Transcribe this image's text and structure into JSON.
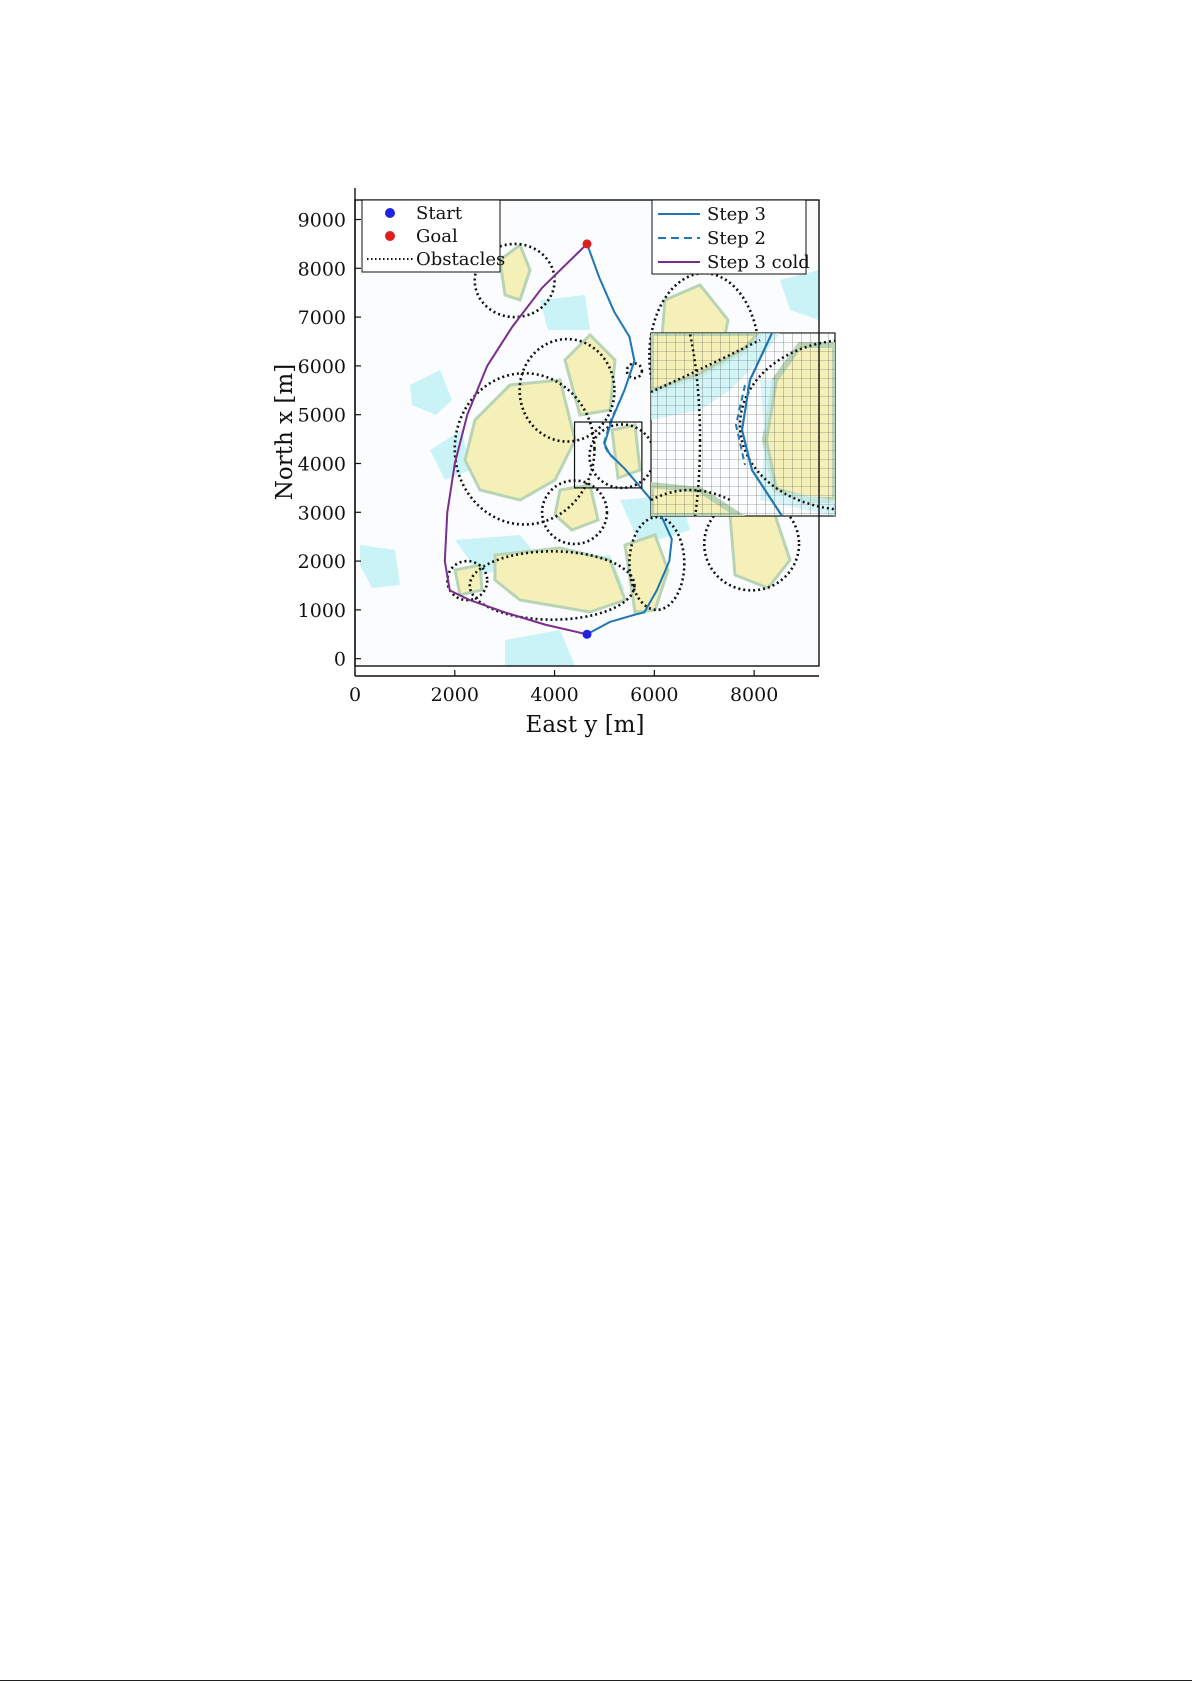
{
  "chart_data": {
    "type": "line",
    "xlabel": "East y [m]",
    "ylabel": "North x [m]",
    "xlim": [
      0,
      9300
    ],
    "ylim": [
      -150,
      9400
    ],
    "x_ticks": [
      0,
      2000,
      4000,
      6000,
      8000
    ],
    "y_ticks": [
      0,
      1000,
      2000,
      3000,
      4000,
      5000,
      6000,
      7000,
      8000,
      9000
    ],
    "grid": false,
    "legend_left": [
      "Start",
      "Goal",
      "Obstacles"
    ],
    "legend_right": [
      "Step 3",
      "Step 2",
      "Step 3 cold"
    ],
    "points": {
      "start": {
        "name": "Start",
        "y": 4650,
        "x": 500,
        "color": "#1f22e0"
      },
      "goal": {
        "name": "Goal",
        "y": 4650,
        "x": 8500,
        "color": "#e01e1e"
      }
    },
    "series": [
      {
        "name": "Step 3",
        "color": "#1f77b4",
        "style": "solid",
        "y": [
          4650,
          5100,
          5600,
          5800,
          6050,
          6300,
          6350,
          6150,
          5900,
          5650,
          5400,
          5100,
          5000,
          5150,
          5400,
          5600,
          5500,
          5200,
          4900,
          4650
        ],
        "x": [
          500,
          750,
          900,
          950,
          1400,
          2000,
          2450,
          2900,
          3300,
          3600,
          3900,
          4200,
          4400,
          4900,
          5500,
          6100,
          6600,
          7100,
          7800,
          8500
        ]
      },
      {
        "name": "Step 2",
        "color": "#1f77b4",
        "style": "dashed",
        "y": [
          4650,
          5100,
          5600,
          5800,
          6050,
          6300,
          6350,
          6150,
          5900,
          5650,
          5400,
          5080,
          4980,
          5130,
          5400,
          5600,
          5500,
          5200,
          4900,
          4650
        ],
        "x": [
          500,
          750,
          900,
          950,
          1400,
          2000,
          2450,
          2900,
          3300,
          3600,
          3900,
          4200,
          4400,
          4900,
          5500,
          6100,
          6600,
          7100,
          7800,
          8500
        ]
      },
      {
        "name": "Step 3 cold",
        "color": "#7b2d8e",
        "style": "solid",
        "y": [
          4650,
          3800,
          3000,
          2300,
          1900,
          1800,
          1850,
          2000,
          2250,
          2650,
          3150,
          3750,
          4650
        ],
        "x": [
          500,
          700,
          950,
          1200,
          1400,
          2000,
          3000,
          4000,
          5000,
          6000,
          6800,
          7600,
          8500
        ]
      }
    ],
    "obstacles": [
      {
        "center_y": 3200,
        "center_x": 7750,
        "radius_y": 800,
        "radius_x": 750
      },
      {
        "center_y": 4250,
        "center_x": 5500,
        "radius_y": 950,
        "radius_x": 1050
      },
      {
        "center_y": 3400,
        "center_x": 4300,
        "radius_y": 1400,
        "radius_x": 1550
      },
      {
        "center_y": 4400,
        "center_x": 3000,
        "radius_y": 650,
        "radius_x": 650
      },
      {
        "center_y": 5350,
        "center_x": 4150,
        "radius_y": 650,
        "radius_x": 650
      },
      {
        "center_y": 5600,
        "center_x": 5900,
        "radius_y": 150,
        "radius_x": 150
      },
      {
        "center_y": 7000,
        "center_x": 6200,
        "radius_y": 1100,
        "radius_x": 1700
      },
      {
        "center_y": 6050,
        "center_x": 1950,
        "radius_y": 550,
        "radius_x": 950
      },
      {
        "center_y": 7950,
        "center_x": 2350,
        "radius_y": 950,
        "radius_x": 950
      },
      {
        "center_y": 3950,
        "center_x": 1500,
        "radius_y": 1650,
        "radius_x": 700
      },
      {
        "center_y": 2250,
        "center_x": 1600,
        "radius_y": 400,
        "radius_x": 400
      }
    ],
    "inset": {
      "region_y": [
        4400,
        5750
      ],
      "region_x": [
        3500,
        4850
      ]
    },
    "colors": {
      "land": "#f5f0b8",
      "shallow_water": "#c9f3f6",
      "land_edge": "#b8d4b4",
      "axes": "#111111"
    }
  }
}
